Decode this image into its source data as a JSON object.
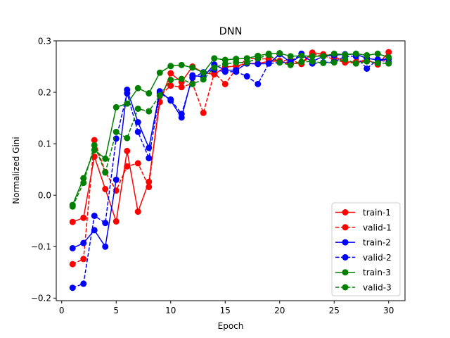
{
  "chart_data": {
    "type": "line",
    "title": "DNN",
    "xlabel": "Epoch",
    "ylabel": "Normalized Gini",
    "xlim": [
      -0.5,
      31.5
    ],
    "ylim": [
      -0.205,
      0.3
    ],
    "xticks": [
      0,
      5,
      10,
      15,
      20,
      25,
      30
    ],
    "yticks": [
      -0.2,
      -0.1,
      0.0,
      0.1,
      0.2,
      0.3
    ],
    "ytick_labels": [
      "−0.2",
      "−0.1",
      "0.0",
      "0.1",
      "0.2",
      "0.3"
    ],
    "legend_position": "lower-right",
    "x": [
      1,
      2,
      3,
      4,
      5,
      6,
      7,
      8,
      9,
      10,
      11,
      12,
      13,
      14,
      15,
      16,
      17,
      18,
      19,
      20,
      21,
      22,
      23,
      24,
      25,
      26,
      27,
      28,
      29,
      30
    ],
    "series": [
      {
        "name": "train-1",
        "color": "#ff0000",
        "dashed": false,
        "values": [
          -0.052,
          -0.044,
          0.075,
          0.012,
          -0.051,
          0.086,
          -0.032,
          0.026,
          0.181,
          0.237,
          0.22,
          0.25,
          0.238,
          0.235,
          0.249,
          0.251,
          0.256,
          0.256,
          0.26,
          0.261,
          0.255,
          0.257,
          0.277,
          0.274,
          0.27,
          0.259,
          0.259,
          0.263,
          0.254,
          0.278
        ]
      },
      {
        "name": "valid-1",
        "color": "#ff0000",
        "dashed": true,
        "values": [
          -0.134,
          -0.124,
          0.107,
          0.045,
          0.009,
          0.056,
          0.062,
          0.016,
          0.193,
          0.213,
          0.21,
          0.217,
          0.16,
          0.238,
          0.216,
          0.245,
          0.266,
          0.265,
          0.265,
          0.261,
          0.263,
          0.255,
          0.274,
          0.271,
          0.264,
          0.258,
          0.257,
          0.262,
          0.256,
          0.266
        ]
      },
      {
        "name": "train-2",
        "color": "#0000ff",
        "dashed": false,
        "values": [
          -0.103,
          -0.093,
          -0.068,
          -0.1,
          0.03,
          0.205,
          0.142,
          0.092,
          0.202,
          0.184,
          0.151,
          0.233,
          0.23,
          0.254,
          0.243,
          0.243,
          0.256,
          0.255,
          0.256,
          0.274,
          0.258,
          0.272,
          0.26,
          0.27,
          0.272,
          0.274,
          0.274,
          0.266,
          0.263,
          0.265
        ]
      },
      {
        "name": "valid-2",
        "color": "#0000ff",
        "dashed": true,
        "values": [
          -0.18,
          -0.172,
          -0.04,
          -0.054,
          0.11,
          0.198,
          0.123,
          0.072,
          0.198,
          0.186,
          0.158,
          0.228,
          0.239,
          0.244,
          0.24,
          0.24,
          0.231,
          0.216,
          0.256,
          0.258,
          0.259,
          0.275,
          0.256,
          0.258,
          0.259,
          0.27,
          0.27,
          0.246,
          0.264,
          0.258
        ]
      },
      {
        "name": "train-3",
        "color": "#008000",
        "dashed": false,
        "values": [
          -0.019,
          0.033,
          0.088,
          0.071,
          0.171,
          0.178,
          0.208,
          0.198,
          0.238,
          0.251,
          0.253,
          0.248,
          0.238,
          0.266,
          0.263,
          0.265,
          0.266,
          0.271,
          0.275,
          0.276,
          0.27,
          0.271,
          0.27,
          0.27,
          0.275,
          0.273,
          0.275,
          0.272,
          0.275,
          0.268
        ]
      },
      {
        "name": "valid-3",
        "color": "#008000",
        "dashed": true,
        "values": [
          -0.022,
          0.024,
          0.097,
          0.044,
          0.123,
          0.111,
          0.168,
          0.163,
          0.194,
          0.224,
          0.226,
          0.216,
          0.225,
          0.248,
          0.255,
          0.258,
          0.258,
          0.266,
          0.273,
          0.258,
          0.253,
          0.259,
          0.26,
          0.257,
          0.258,
          0.264,
          0.256,
          0.26,
          0.257,
          0.256
        ]
      }
    ]
  }
}
